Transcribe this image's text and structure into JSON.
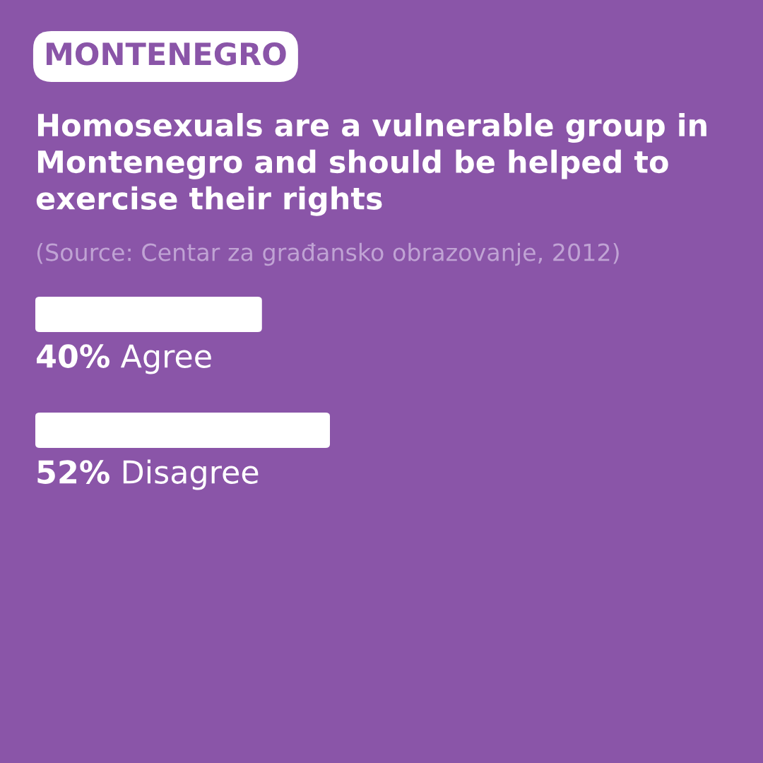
{
  "chart_data": {
    "type": "bar",
    "orientation": "horizontal",
    "title": "MONTENEGRO",
    "subtitle": "Homosexuals are a vulnerable group in Montenegro and should be helped to exercise their rights",
    "annotations": [
      "(Source: Centar za građansko obrazovanje, 2012)"
    ],
    "categories": [
      "Agree",
      "Disagree"
    ],
    "values": [
      40,
      52
    ],
    "value_labels": [
      "40%",
      "52%"
    ],
    "color": "#ffffff"
  }
}
